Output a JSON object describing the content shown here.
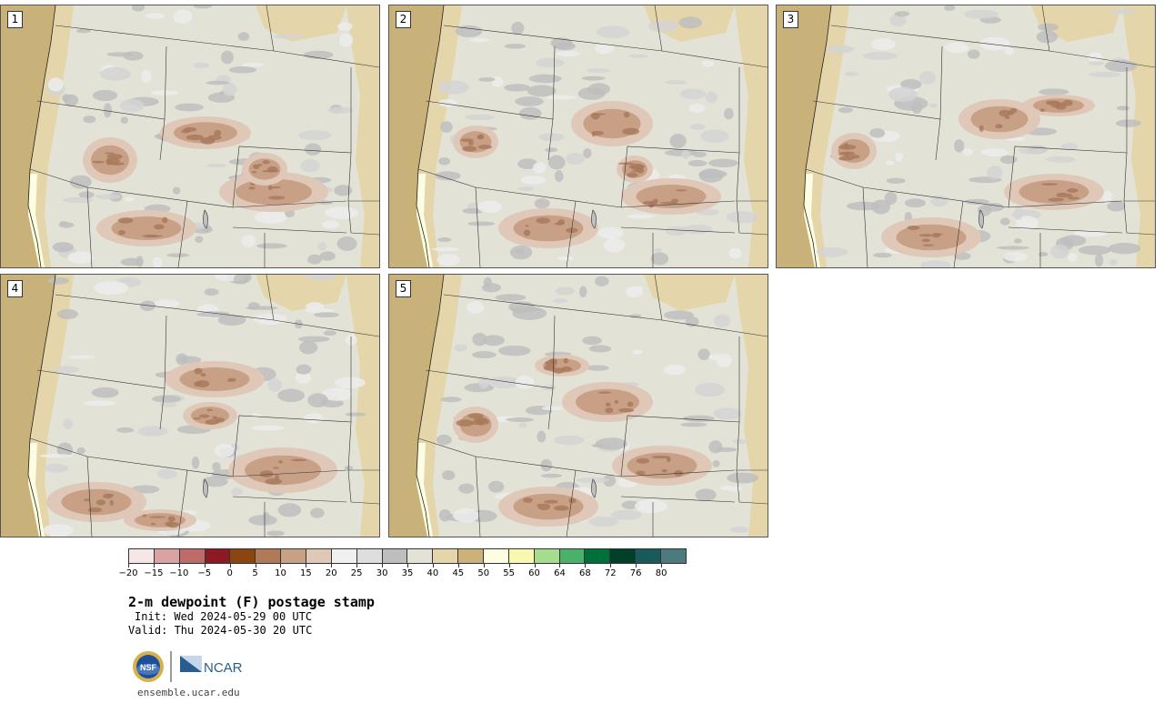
{
  "panels": [
    {
      "label": "1"
    },
    {
      "label": "2"
    },
    {
      "label": "3"
    },
    {
      "label": "4"
    },
    {
      "label": "5"
    }
  ],
  "colorbar": {
    "colors": [
      "#f6e6e6",
      "#d9a3a3",
      "#bd6b6b",
      "#8c1a24",
      "#8a4510",
      "#b07a58",
      "#c8a086",
      "#e0c8b8",
      "#f0f0f0",
      "#dedede",
      "#bebebe",
      "#e2e2d6",
      "#e4d6aa",
      "#ccb27a",
      "#fdfde2",
      "#f8f8b0",
      "#a6dc8e",
      "#4bb06a",
      "#00703a",
      "#00402a",
      "#1a5a5a",
      "#4c7a7e"
    ],
    "tick_labels": [
      "−20",
      "−15",
      "−10",
      "−5",
      "0",
      "5",
      "10",
      "15",
      "20",
      "25",
      "30",
      "35",
      "40",
      "45",
      "50",
      "55",
      "60",
      "64",
      "68",
      "72",
      "76",
      "80"
    ]
  },
  "text": {
    "title": "2-m dewpoint (F) postage stamp",
    "init": "Init: Wed 2024-05-29 00 UTC",
    "valid": "Valid: Thu 2024-05-30 20 UTC",
    "url": "ensemble.ucar.edu"
  },
  "logos": {
    "nsf_text": "NSF",
    "ncar_text": "NCAR"
  },
  "map_colors": {
    "ocean": "#c9b27a",
    "coast_band": "#e4d6aa",
    "pale": "#e2e2d6",
    "gray_dark": "#bebebe",
    "gray_mid": "#d4d4d4",
    "gray_light": "#ececec",
    "dry_light": "#e0c8b8",
    "dry_mid": "#c8a086",
    "dry_dark": "#a8785a",
    "yellow": "#fdfde2",
    "border": "#333333"
  }
}
